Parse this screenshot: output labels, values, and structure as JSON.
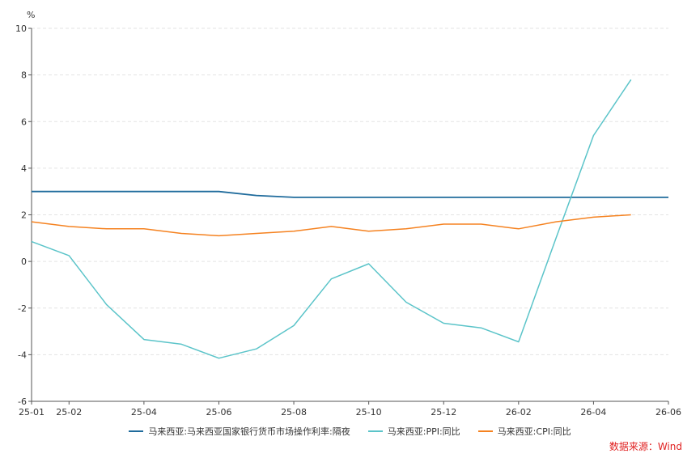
{
  "chart_data": {
    "type": "line",
    "unit_label": "%",
    "x": [
      "25-01",
      "25-02",
      "25-03",
      "25-04",
      "25-05",
      "25-06",
      "25-07",
      "25-08",
      "25-09",
      "25-10",
      "25-11",
      "25-12",
      "26-01",
      "26-02",
      "26-03",
      "26-04",
      "26-05",
      "26-06"
    ],
    "x_tick_labels": [
      "25-01",
      "25-02",
      "25-04",
      "25-06",
      "25-08",
      "25-10",
      "25-12",
      "26-02",
      "26-04",
      "26-06"
    ],
    "y_ticks": [
      -6,
      -4,
      -2,
      0,
      2,
      4,
      6,
      8,
      10
    ],
    "ylim": [
      -6,
      10
    ],
    "grid": true,
    "legend_position": "bottom",
    "series": [
      {
        "name": "马来西亚:马来西亚国家银行货币市场操作利率:隔夜",
        "color": "#1f6b9c",
        "values": [
          3.0,
          3.0,
          3.0,
          3.0,
          3.0,
          3.0,
          2.83,
          2.75,
          2.75,
          2.75,
          2.75,
          2.75,
          2.75,
          2.75,
          2.75,
          2.75,
          2.75,
          2.75
        ]
      },
      {
        "name": "马来西亚:PPI:同比",
        "color": "#5bc4c9",
        "values": [
          0.85,
          0.25,
          -1.85,
          -3.35,
          -3.55,
          -4.15,
          -3.75,
          -2.75,
          -0.75,
          -0.1,
          -1.75,
          -2.65,
          -2.85,
          -3.45,
          1.0,
          5.4,
          7.8,
          null
        ]
      },
      {
        "name": "马来西亚:CPI:同比",
        "color": "#f58220",
        "values": [
          1.7,
          1.5,
          1.4,
          1.4,
          1.2,
          1.1,
          1.2,
          1.3,
          1.5,
          1.3,
          1.4,
          1.6,
          1.6,
          1.4,
          1.7,
          1.9,
          2.0,
          null
        ]
      }
    ]
  },
  "source": "数据来源：Wind"
}
